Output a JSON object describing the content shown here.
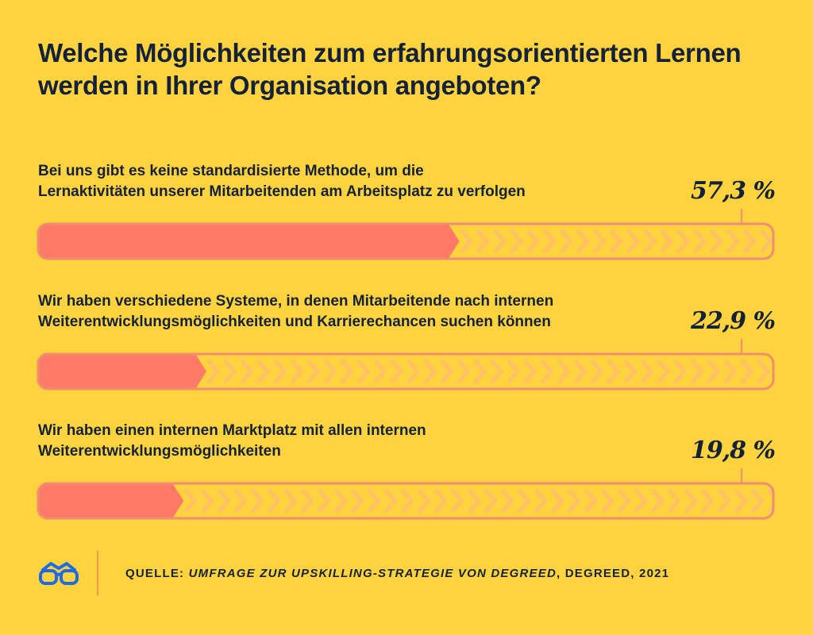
{
  "title": "Welche Möglichkeiten zum erfahrungsorientierten Lernen werden in Ihrer Organisation angeboten?",
  "chart_data": {
    "type": "bar",
    "orientation": "horizontal",
    "categories": [
      "Bei uns gibt es keine standardisierte Methode, um die Lernaktivitäten unserer Mitarbeitenden am Arbeitsplatz zu verfolgen",
      "Wir haben verschiedene Systeme, in denen Mitarbeitende nach internen Weiterentwicklungsmöglichkeiten und Karrierechancen suchen können",
      "Wir haben einen internen Marktplatz mit allen internen Weiterentwicklungsmöglichkeiten"
    ],
    "values": [
      57.3,
      22.9,
      19.8
    ],
    "value_labels": [
      "57,3 %",
      "22,9 %",
      "19,8 %"
    ],
    "xlim": [
      0,
      100
    ],
    "unit": "%",
    "grid": false,
    "colors": {
      "fill": "#FF7A66",
      "track": "#FFD33D",
      "outline": "#F08D72",
      "chevron": "#FFC067",
      "background": "#FFD33D"
    }
  },
  "items": [
    {
      "label_line1": "Bei uns gibt es keine standardisierte Methode, um die",
      "label_line2": "Lernaktivitäten unserer Mitarbeitenden am Arbeitsplatz zu verfolgen",
      "value_label": "57,3 %"
    },
    {
      "label_line1": "Wir haben verschiedene Systeme, in denen Mitarbeitende nach internen",
      "label_line2": "Weiterentwicklungsmöglichkeiten und Karrierechancen suchen können",
      "value_label": "22,9 %"
    },
    {
      "label_line1": "Wir haben einen internen Marktplatz mit allen internen",
      "label_line2": "Weiterentwicklungsmöglichkeiten",
      "value_label": "19,8 %"
    }
  ],
  "footer": {
    "icon": "glasses-icon",
    "source_prefix": "QUELLE: ",
    "source_title": "UMFRAGE ZUR UPSKILLING-STRATEGIE VON DEGREED",
    "source_suffix": ", DEGREED, 2021"
  }
}
